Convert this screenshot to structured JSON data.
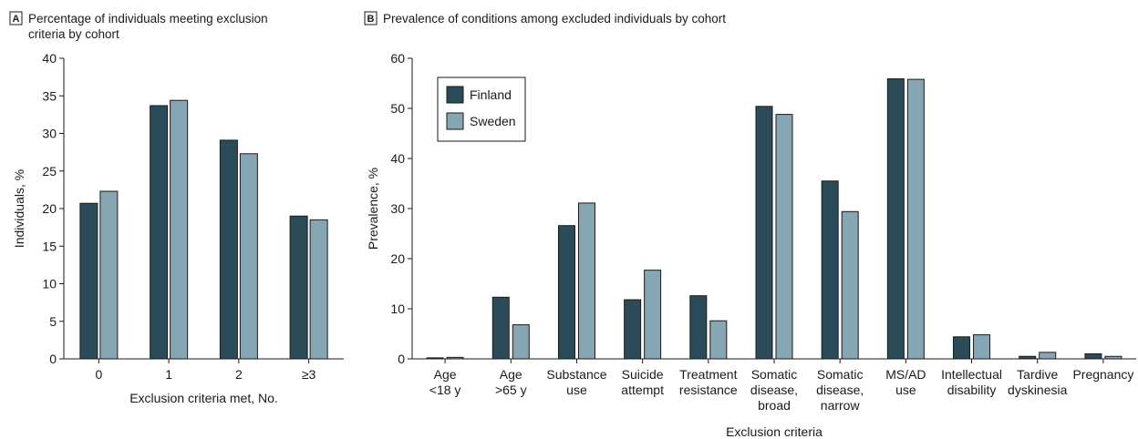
{
  "chart_data": [
    {
      "panel_letter": "A",
      "type": "bar",
      "title": "Percentage of individuals meeting exclusion criteria by cohort",
      "title_lines": [
        "Percentage of individuals meeting exclusion",
        "criteria by cohort"
      ],
      "xlabel": "Exclusion criteria met, No.",
      "ylabel": "Individuals, %",
      "ylim": [
        0,
        40
      ],
      "yticks": [
        0,
        5,
        10,
        15,
        20,
        25,
        30,
        35,
        40
      ],
      "categories": [
        "0",
        "1",
        "2",
        "≥3"
      ],
      "series": [
        {
          "name": "Finland",
          "values": [
            20.7,
            33.7,
            29.1,
            19.0
          ]
        },
        {
          "name": "Sweden",
          "values": [
            22.3,
            34.4,
            27.3,
            18.5
          ]
        }
      ],
      "grid": false,
      "legend": false
    },
    {
      "panel_letter": "B",
      "type": "bar",
      "title": "Prevalence of conditions among excluded individuals by cohort",
      "xlabel": "Exclusion criteria",
      "ylabel": "Prevalence, %",
      "ylim": [
        0,
        60
      ],
      "yticks": [
        0,
        10,
        20,
        30,
        40,
        50,
        60
      ],
      "categories": [
        [
          "Age",
          "<18 y"
        ],
        [
          "Age",
          ">65 y"
        ],
        [
          "Substance",
          "use"
        ],
        [
          "Suicide",
          "attempt"
        ],
        [
          "Treatment",
          "resistance"
        ],
        [
          "Somatic",
          "disease,",
          "broad"
        ],
        [
          "Somatic",
          "disease,",
          "narrow"
        ],
        [
          "MS/AD",
          "use"
        ],
        [
          "Intellectual",
          "disability"
        ],
        [
          "Tardive",
          "dyskinesia"
        ],
        [
          "Pregnancy"
        ]
      ],
      "series": [
        {
          "name": "Finland",
          "values": [
            0.2,
            12.3,
            26.6,
            11.8,
            12.6,
            50.4,
            35.5,
            55.9,
            4.4,
            0.5,
            1.0
          ]
        },
        {
          "name": "Sweden",
          "values": [
            0.3,
            6.8,
            31.1,
            17.7,
            7.6,
            48.8,
            29.4,
            55.8,
            4.8,
            1.3,
            0.5
          ]
        }
      ],
      "grid": false,
      "legend": "top-left"
    }
  ],
  "colors": {
    "finland": "#2c4b58",
    "sweden": "#86a6b4",
    "axis": "#1a1a1a"
  }
}
